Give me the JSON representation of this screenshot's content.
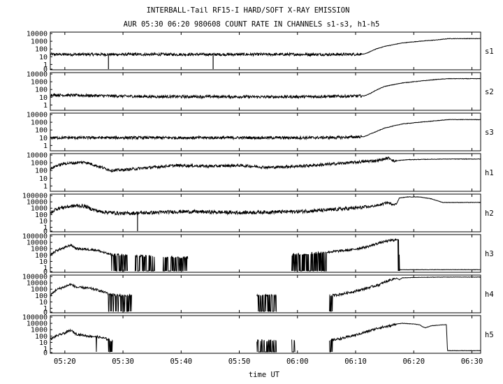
{
  "title": "INTERBALL-Tail RF15-I HARD/SOFT X-RAY EMISSION",
  "subtitle": "AUR 05:30 06:20 980608  COUNT RATE IN CHANNELS s1-s3, h1-h5",
  "chart_data": {
    "type": "line",
    "title": "INTERBALL-Tail RF15-I HARD/SOFT X-RAY EMISSION",
    "subtitle": "AUR 05:30 06:20 980608  COUNT RATE IN CHANNELS s1-s3, h1-h5",
    "xlabel": "time UT",
    "x_range_minutes_ut": [
      317.5,
      391.5
    ],
    "x_ticks": [
      {
        "minute": 320,
        "label": "05:20"
      },
      {
        "minute": 330,
        "label": "05:30"
      },
      {
        "minute": 340,
        "label": "05:40"
      },
      {
        "minute": 350,
        "label": "05:50"
      },
      {
        "minute": 360,
        "label": "06:00"
      },
      {
        "minute": 370,
        "label": "06:10"
      },
      {
        "minute": 380,
        "label": "06:20"
      },
      {
        "minute": 390,
        "label": "06:30"
      }
    ],
    "y_scale": "log",
    "grid": false,
    "panels": [
      {
        "name": "s1",
        "ylim": [
          0,
          10000
        ],
        "y_ticks": [
          "10000",
          "1000",
          "100",
          "10",
          "1",
          "0"
        ],
        "series_points": [
          [
            317.5,
            20
          ],
          [
            325,
            20
          ],
          [
            335,
            20
          ],
          [
            345,
            20
          ],
          [
            355,
            20
          ],
          [
            362,
            20
          ],
          [
            368,
            20
          ],
          [
            371.5,
            22
          ],
          [
            372.5,
            45
          ],
          [
            373.5,
            100
          ],
          [
            375,
            220
          ],
          [
            378,
            600
          ],
          [
            381,
            1000
          ],
          [
            384,
            1500
          ],
          [
            386,
            2200
          ],
          [
            391.5,
            2200
          ]
        ],
        "dropouts": [
          327.5,
          345.5
        ]
      },
      {
        "name": "s2",
        "ylim": [
          0,
          10000
        ],
        "y_ticks": [
          "10000",
          "1000",
          "100",
          "10",
          "1"
        ],
        "series_points": [
          [
            317.5,
            20
          ],
          [
            325,
            16
          ],
          [
            335,
            12
          ],
          [
            345,
            12
          ],
          [
            355,
            11
          ],
          [
            362,
            12
          ],
          [
            368,
            13
          ],
          [
            371.5,
            15
          ],
          [
            372.5,
            30
          ],
          [
            373.5,
            80
          ],
          [
            375,
            250
          ],
          [
            378,
            700
          ],
          [
            381,
            1200
          ],
          [
            384,
            2000
          ],
          [
            386,
            2500
          ],
          [
            391.5,
            2500
          ]
        ],
        "dropouts": []
      },
      {
        "name": "s3",
        "ylim": [
          0,
          10000
        ],
        "y_ticks": [
          "10000",
          "1000",
          "100",
          "10",
          "1"
        ],
        "series_points": [
          [
            317.5,
            10
          ],
          [
            325,
            10
          ],
          [
            335,
            10
          ],
          [
            345,
            10
          ],
          [
            355,
            10
          ],
          [
            362,
            10
          ],
          [
            368,
            11
          ],
          [
            371.5,
            14
          ],
          [
            372.5,
            30
          ],
          [
            373.5,
            60
          ],
          [
            375,
            180
          ],
          [
            378,
            600
          ],
          [
            381,
            1000
          ],
          [
            384,
            1600
          ],
          [
            386,
            2200
          ],
          [
            391.5,
            2200
          ]
        ],
        "dropouts": []
      },
      {
        "name": "h1",
        "ylim": [
          0,
          10000
        ],
        "y_ticks": [
          "10000",
          "1000",
          "100",
          "10",
          "1"
        ],
        "series_points": [
          [
            317.5,
            150
          ],
          [
            318.5,
            400
          ],
          [
            320,
            800
          ],
          [
            322,
            1000
          ],
          [
            323.5,
            1200
          ],
          [
            324.5,
            700
          ],
          [
            326,
            300
          ],
          [
            328,
            100
          ],
          [
            330,
            120
          ],
          [
            332,
            160
          ],
          [
            335,
            250
          ],
          [
            338,
            400
          ],
          [
            340,
            450
          ],
          [
            345,
            350
          ],
          [
            350,
            450
          ],
          [
            355,
            250
          ],
          [
            360,
            350
          ],
          [
            365,
            600
          ],
          [
            368,
            900
          ],
          [
            372,
            1500
          ],
          [
            374,
            2000
          ],
          [
            375.5,
            4000
          ],
          [
            376,
            3500
          ],
          [
            376.6,
            1500
          ],
          [
            377.5,
            2000
          ],
          [
            379,
            2500
          ],
          [
            385,
            3000
          ],
          [
            391.5,
            3000
          ]
        ],
        "dropouts": []
      },
      {
        "name": "h2",
        "ylim": [
          0,
          100000
        ],
        "y_ticks": [
          "100000",
          "10000",
          "1000",
          "100",
          "10",
          "1",
          "0"
        ],
        "series_points": [
          [
            317.5,
            150
          ],
          [
            318.5,
            800
          ],
          [
            320,
            1500
          ],
          [
            322,
            2500
          ],
          [
            323.5,
            2000
          ],
          [
            324.5,
            800
          ],
          [
            326,
            300
          ],
          [
            328,
            200
          ],
          [
            330,
            150
          ],
          [
            335,
            200
          ],
          [
            340,
            300
          ],
          [
            345,
            250
          ],
          [
            350,
            200
          ],
          [
            355,
            250
          ],
          [
            360,
            300
          ],
          [
            365,
            500
          ],
          [
            368,
            800
          ],
          [
            372,
            1500
          ],
          [
            374,
            3000
          ],
          [
            375.5,
            8000
          ],
          [
            376,
            5000
          ],
          [
            377,
            4000
          ],
          [
            377.5,
            40000
          ],
          [
            379,
            60000
          ],
          [
            381,
            60000
          ],
          [
            383,
            30000
          ],
          [
            385,
            8000
          ],
          [
            385.5,
            8000
          ],
          [
            391.5,
            8000
          ]
        ],
        "dropouts": [
          332.5
        ]
      },
      {
        "name": "h3",
        "ylim": [
          0,
          100000
        ],
        "y_ticks": [
          "100000",
          "10000",
          "1000",
          "100",
          "10",
          "1",
          "0"
        ],
        "series_points": [
          [
            317.5,
            100
          ],
          [
            318.5,
            500
          ],
          [
            320,
            1500
          ],
          [
            321,
            4000
          ],
          [
            322,
            1000
          ],
          [
            324,
            800
          ],
          [
            325.5,
            600
          ],
          [
            327,
            200
          ],
          [
            328,
            120
          ],
          [
            330,
            90
          ],
          [
            332,
            80
          ],
          [
            334,
            70
          ],
          [
            336,
            60
          ],
          [
            338,
            50
          ],
          [
            340,
            40
          ],
          [
            342,
            40
          ],
          [
            344,
            40
          ],
          [
            346,
            45
          ],
          [
            348,
            50
          ],
          [
            350,
            50
          ],
          [
            352,
            55
          ],
          [
            354,
            60
          ],
          [
            356,
            70
          ],
          [
            358,
            80
          ],
          [
            360,
            120
          ],
          [
            363,
            200
          ],
          [
            366,
            350
          ],
          [
            369,
            600
          ],
          [
            372,
            2000
          ],
          [
            374,
            8000
          ],
          [
            376,
            20000
          ],
          [
            377,
            25000
          ],
          [
            377.4,
            30000
          ],
          [
            377.6,
            0.5
          ],
          [
            391.5,
            0.5
          ]
        ],
        "gaps": [
          [
            330.8,
            332.0
          ],
          [
            335.5,
            336.8
          ],
          [
            341.2,
            359.0
          ]
        ],
        "dropout_zones": [
          [
            328.0,
            330.8
          ],
          [
            332.0,
            335.5
          ],
          [
            336.8,
            341.2
          ],
          [
            353.0,
            358.0
          ],
          [
            358.9,
            365.0
          ],
          [
            377.3,
            377.8
          ]
        ]
      },
      {
        "name": "h4",
        "ylim": [
          0,
          100000
        ],
        "y_ticks": [
          "100000",
          "10000",
          "1000",
          "100",
          "10",
          "1",
          "0"
        ],
        "series_points": [
          [
            317.5,
            100
          ],
          [
            318.5,
            800
          ],
          [
            320,
            2500
          ],
          [
            321,
            6000
          ],
          [
            322,
            2000
          ],
          [
            324,
            1500
          ],
          [
            325.5,
            800
          ],
          [
            327,
            300
          ],
          [
            328,
            150
          ],
          [
            330,
            100
          ],
          [
            331,
            100
          ],
          [
            353,
            100
          ],
          [
            356,
            100
          ],
          [
            357,
            100
          ],
          [
            365,
            100
          ],
          [
            366,
            100
          ],
          [
            368,
            200
          ],
          [
            370,
            500
          ],
          [
            372,
            1500
          ],
          [
            374,
            5000
          ],
          [
            375.5,
            20000
          ],
          [
            376.5,
            40000
          ],
          [
            377,
            60000
          ],
          [
            377.5,
            30000
          ],
          [
            378,
            60000
          ],
          [
            380,
            70000
          ],
          [
            385,
            80000
          ],
          [
            391.5,
            80000
          ]
        ],
        "gaps": [
          [
            331.5,
            353.0
          ],
          [
            356.5,
            365.5
          ]
        ],
        "dropout_zones": [
          [
            327.5,
            331.5
          ],
          [
            353.0,
            356.5
          ],
          [
            365.5,
            366.0
          ]
        ]
      },
      {
        "name": "h5",
        "ylim": [
          0,
          100000
        ],
        "y_ticks": [
          "100000",
          "10000",
          "1000",
          "100",
          "10",
          "1",
          "0"
        ],
        "series_points": [
          [
            317.5,
            30
          ],
          [
            318.5,
            100
          ],
          [
            320,
            300
          ],
          [
            321,
            800
          ],
          [
            322,
            200
          ],
          [
            324,
            100
          ],
          [
            325.5,
            80
          ],
          [
            327,
            40
          ],
          [
            328,
            20
          ],
          [
            328.2,
            20
          ],
          [
            353,
            20
          ],
          [
            356,
            20
          ],
          [
            365.5,
            20
          ],
          [
            368,
            50
          ],
          [
            370,
            150
          ],
          [
            372,
            500
          ],
          [
            374,
            2000
          ],
          [
            376,
            4000
          ],
          [
            377,
            8000
          ],
          [
            378,
            10000
          ],
          [
            380,
            8000
          ],
          [
            381,
            6000
          ],
          [
            381.5,
            3000
          ],
          [
            382,
            2000
          ],
          [
            383,
            4000
          ],
          [
            384,
            5000
          ],
          [
            385,
            6000
          ],
          [
            385.6,
            6000
          ],
          [
            385.8,
            0.5
          ],
          [
            391.5,
            0.5
          ]
        ],
        "gaps": [
          [
            328.3,
            353.0
          ],
          [
            356.5,
            359.0
          ],
          [
            359.6,
            365.5
          ]
        ],
        "dropout_zones": [
          [
            325.2,
            325.5
          ],
          [
            327.5,
            328.3
          ],
          [
            353.0,
            356.5
          ],
          [
            359.0,
            359.6
          ],
          [
            365.5,
            366.0
          ]
        ]
      }
    ]
  }
}
